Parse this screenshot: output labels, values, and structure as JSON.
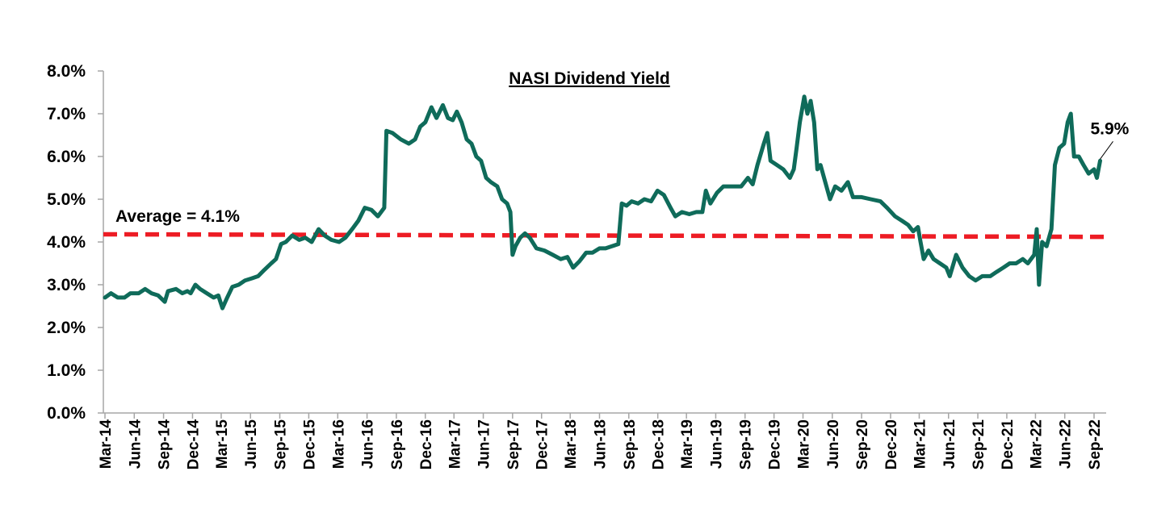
{
  "chart_data": {
    "type": "line",
    "title": "NASI Dividend Yield",
    "xlabel": "",
    "ylabel": "",
    "ylim": [
      0,
      8
    ],
    "y_tick_labels": [
      "0.0%",
      "1.0%",
      "2.0%",
      "3.0%",
      "4.0%",
      "5.0%",
      "6.0%",
      "7.0%",
      "8.0%"
    ],
    "x_tick_labels": [
      "Mar-14",
      "Jun-14",
      "Sep-14",
      "Dec-14",
      "Mar-15",
      "Jun-15",
      "Sep-15",
      "Dec-15",
      "Mar-16",
      "Jun-16",
      "Sep-16",
      "Dec-16",
      "Mar-17",
      "Jun-17",
      "Sep-17",
      "Dec-17",
      "Mar-18",
      "Jun-18",
      "Sep-18",
      "Dec-18",
      "Mar-19",
      "Jun-19",
      "Sep-19",
      "Dec-19",
      "Mar-20",
      "Jun-20",
      "Sep-20",
      "Dec-20",
      "Mar-21",
      "Jun-21",
      "Sep-21",
      "Dec-21",
      "Mar-22",
      "Jun-22",
      "Sep-22"
    ],
    "legend": "none",
    "grid": false,
    "series": [
      {
        "name": "",
        "color": "#0f6b5a",
        "points": [
          [
            "2014-03-01",
            2.7
          ],
          [
            "2014-03-20",
            2.8
          ],
          [
            "2014-04-10",
            2.7
          ],
          [
            "2014-05-01",
            2.7
          ],
          [
            "2014-05-20",
            2.8
          ],
          [
            "2014-06-15",
            2.8
          ],
          [
            "2014-07-05",
            2.9
          ],
          [
            "2014-07-25",
            2.8
          ],
          [
            "2014-08-15",
            2.75
          ],
          [
            "2014-09-05",
            2.6
          ],
          [
            "2014-09-15",
            2.85
          ],
          [
            "2014-10-10",
            2.9
          ],
          [
            "2014-10-30",
            2.8
          ],
          [
            "2014-11-15",
            2.85
          ],
          [
            "2014-11-25",
            2.8
          ],
          [
            "2014-12-10",
            3.0
          ],
          [
            "2014-12-25",
            2.9
          ],
          [
            "2015-01-15",
            2.8
          ],
          [
            "2015-02-05",
            2.7
          ],
          [
            "2015-02-20",
            2.75
          ],
          [
            "2015-03-05",
            2.45
          ],
          [
            "2015-03-20",
            2.7
          ],
          [
            "2015-04-05",
            2.95
          ],
          [
            "2015-04-25",
            3.0
          ],
          [
            "2015-05-15",
            3.1
          ],
          [
            "2015-06-05",
            3.15
          ],
          [
            "2015-06-25",
            3.2
          ],
          [
            "2015-07-15",
            3.35
          ],
          [
            "2015-08-05",
            3.5
          ],
          [
            "2015-08-20",
            3.6
          ],
          [
            "2015-09-05",
            3.95
          ],
          [
            "2015-09-20",
            4.0
          ],
          [
            "2015-10-10",
            4.15
          ],
          [
            "2015-11-01",
            4.05
          ],
          [
            "2015-11-20",
            4.1
          ],
          [
            "2015-12-10",
            4.0
          ],
          [
            "2016-01-01",
            4.3
          ],
          [
            "2016-01-20",
            4.15
          ],
          [
            "2016-02-10",
            4.05
          ],
          [
            "2016-03-05",
            4.0
          ],
          [
            "2016-03-25",
            4.1
          ],
          [
            "2016-04-15",
            4.3
          ],
          [
            "2016-05-05",
            4.5
          ],
          [
            "2016-05-25",
            4.8
          ],
          [
            "2016-06-15",
            4.75
          ],
          [
            "2016-07-05",
            4.6
          ],
          [
            "2016-07-25",
            4.8
          ],
          [
            "2016-08-01",
            6.6
          ],
          [
            "2016-08-20",
            6.55
          ],
          [
            "2016-09-15",
            6.4
          ],
          [
            "2016-10-10",
            6.3
          ],
          [
            "2016-10-30",
            6.4
          ],
          [
            "2016-11-15",
            6.7
          ],
          [
            "2016-12-01",
            6.8
          ],
          [
            "2016-12-20",
            7.15
          ],
          [
            "2017-01-05",
            6.9
          ],
          [
            "2017-01-25",
            7.2
          ],
          [
            "2017-02-10",
            6.9
          ],
          [
            "2017-02-25",
            6.85
          ],
          [
            "2017-03-10",
            7.05
          ],
          [
            "2017-03-25",
            6.8
          ],
          [
            "2017-04-10",
            6.4
          ],
          [
            "2017-04-25",
            6.3
          ],
          [
            "2017-05-10",
            6.0
          ],
          [
            "2017-05-25",
            5.9
          ],
          [
            "2017-06-10",
            5.5
          ],
          [
            "2017-06-25",
            5.4
          ],
          [
            "2017-07-15",
            5.3
          ],
          [
            "2017-07-30",
            5.0
          ],
          [
            "2017-08-15",
            4.9
          ],
          [
            "2017-08-25",
            4.7
          ],
          [
            "2017-09-01",
            3.7
          ],
          [
            "2017-09-10",
            3.9
          ],
          [
            "2017-09-25",
            4.1
          ],
          [
            "2017-10-10",
            4.2
          ],
          [
            "2017-10-25",
            4.1
          ],
          [
            "2017-11-15",
            3.85
          ],
          [
            "2017-12-10",
            3.8
          ],
          [
            "2018-01-05",
            3.7
          ],
          [
            "2018-01-30",
            3.6
          ],
          [
            "2018-02-20",
            3.65
          ],
          [
            "2018-03-10",
            3.4
          ],
          [
            "2018-03-30",
            3.55
          ],
          [
            "2018-04-20",
            3.75
          ],
          [
            "2018-05-10",
            3.75
          ],
          [
            "2018-06-01",
            3.85
          ],
          [
            "2018-06-20",
            3.85
          ],
          [
            "2018-07-10",
            3.9
          ],
          [
            "2018-07-30",
            3.95
          ],
          [
            "2018-08-10",
            4.9
          ],
          [
            "2018-08-25",
            4.85
          ],
          [
            "2018-09-10",
            4.95
          ],
          [
            "2018-09-30",
            4.9
          ],
          [
            "2018-10-20",
            5.0
          ],
          [
            "2018-11-10",
            4.95
          ],
          [
            "2018-11-30",
            5.2
          ],
          [
            "2018-12-20",
            5.1
          ],
          [
            "2019-01-10",
            4.8
          ],
          [
            "2019-01-25",
            4.6
          ],
          [
            "2019-02-15",
            4.7
          ],
          [
            "2019-03-10",
            4.65
          ],
          [
            "2019-04-01",
            4.7
          ],
          [
            "2019-04-20",
            4.7
          ],
          [
            "2019-05-01",
            5.2
          ],
          [
            "2019-05-15",
            4.9
          ],
          [
            "2019-06-05",
            5.15
          ],
          [
            "2019-06-25",
            5.3
          ],
          [
            "2019-07-20",
            5.3
          ],
          [
            "2019-08-20",
            5.3
          ],
          [
            "2019-09-10",
            5.5
          ],
          [
            "2019-09-25",
            5.35
          ],
          [
            "2019-10-10",
            5.8
          ],
          [
            "2019-10-30",
            6.3
          ],
          [
            "2019-11-10",
            6.55
          ],
          [
            "2019-11-20",
            5.9
          ],
          [
            "2019-12-10",
            5.8
          ],
          [
            "2019-12-30",
            5.7
          ],
          [
            "2020-01-20",
            5.5
          ],
          [
            "2020-02-01",
            5.7
          ],
          [
            "2020-02-10",
            6.2
          ],
          [
            "2020-02-20",
            6.8
          ],
          [
            "2020-03-05",
            7.4
          ],
          [
            "2020-03-15",
            7.0
          ],
          [
            "2020-03-25",
            7.3
          ],
          [
            "2020-04-05",
            6.8
          ],
          [
            "2020-04-15",
            5.7
          ],
          [
            "2020-04-25",
            5.8
          ],
          [
            "2020-05-10",
            5.4
          ],
          [
            "2020-05-25",
            5.0
          ],
          [
            "2020-06-10",
            5.3
          ],
          [
            "2020-06-30",
            5.2
          ],
          [
            "2020-07-20",
            5.4
          ],
          [
            "2020-08-05",
            5.05
          ],
          [
            "2020-09-01",
            5.05
          ],
          [
            "2020-09-30",
            5.0
          ],
          [
            "2020-10-30",
            4.95
          ],
          [
            "2020-11-20",
            4.8
          ],
          [
            "2020-12-15",
            4.6
          ],
          [
            "2021-01-05",
            4.5
          ],
          [
            "2021-01-25",
            4.4
          ],
          [
            "2021-02-10",
            4.25
          ],
          [
            "2021-02-25",
            4.35
          ],
          [
            "2021-03-05",
            4.0
          ],
          [
            "2021-03-15",
            3.6
          ],
          [
            "2021-03-30",
            3.8
          ],
          [
            "2021-04-15",
            3.6
          ],
          [
            "2021-05-05",
            3.5
          ],
          [
            "2021-05-25",
            3.4
          ],
          [
            "2021-06-05",
            3.2
          ],
          [
            "2021-06-25",
            3.7
          ],
          [
            "2021-07-15",
            3.4
          ],
          [
            "2021-08-05",
            3.2
          ],
          [
            "2021-08-25",
            3.1
          ],
          [
            "2021-09-15",
            3.2
          ],
          [
            "2021-10-10",
            3.2
          ],
          [
            "2021-10-30",
            3.3
          ],
          [
            "2021-11-20",
            3.4
          ],
          [
            "2021-12-10",
            3.5
          ],
          [
            "2021-12-30",
            3.5
          ],
          [
            "2022-01-20",
            3.6
          ],
          [
            "2022-02-05",
            3.5
          ],
          [
            "2022-02-25",
            3.7
          ],
          [
            "2022-03-05",
            4.3
          ],
          [
            "2022-03-12",
            3.0
          ],
          [
            "2022-03-22",
            4.0
          ],
          [
            "2022-04-05",
            3.9
          ],
          [
            "2022-04-20",
            4.3
          ],
          [
            "2022-05-01",
            5.8
          ],
          [
            "2022-05-15",
            6.2
          ],
          [
            "2022-05-30",
            6.3
          ],
          [
            "2022-06-10",
            6.8
          ],
          [
            "2022-06-20",
            7.0
          ],
          [
            "2022-06-30",
            6.0
          ],
          [
            "2022-07-15",
            6.0
          ],
          [
            "2022-07-30",
            5.8
          ],
          [
            "2022-08-15",
            5.6
          ],
          [
            "2022-09-01",
            5.7
          ],
          [
            "2022-09-10",
            5.5
          ],
          [
            "2022-09-20",
            5.9
          ]
        ]
      }
    ],
    "reference_lines": [
      {
        "label": "Average = 4.1%",
        "y_start": 4.18,
        "y_end": 4.12,
        "color": "#ed1c24",
        "style": "dashed"
      }
    ],
    "annotations": [
      {
        "text": "5.9%",
        "x": "2022-09-20",
        "y": 5.9
      }
    ]
  }
}
